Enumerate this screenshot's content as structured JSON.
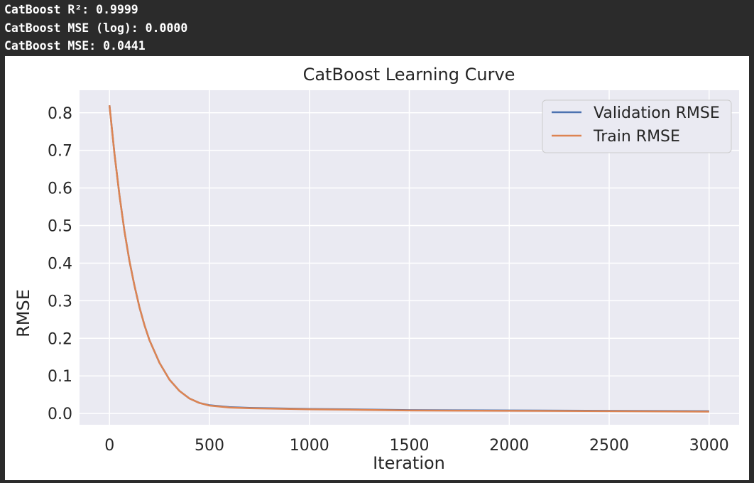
{
  "console": {
    "lines": [
      "CatBoost R²: 0.9999",
      "CatBoost MSE (log): 0.0000",
      "CatBoost MSE: 0.0441"
    ]
  },
  "colors": {
    "validation": "#4c72b0",
    "train": "#dd8452",
    "plot_bg": "#eaeaf2",
    "grid": "#ffffff"
  },
  "chart_data": {
    "type": "line",
    "title": "CatBoost Learning Curve",
    "xlabel": "Iteration",
    "ylabel": "RMSE",
    "xlim": [
      -150,
      3150
    ],
    "ylim": [
      -0.03,
      0.86
    ],
    "x_ticks": [
      0,
      500,
      1000,
      1500,
      2000,
      2500,
      3000
    ],
    "x_tick_labels": [
      "0",
      "500",
      "1000",
      "1500",
      "2000",
      "2500",
      "3000"
    ],
    "y_ticks": [
      0.0,
      0.1,
      0.2,
      0.3,
      0.4,
      0.5,
      0.6,
      0.7,
      0.8
    ],
    "y_tick_labels": [
      "0.0",
      "0.1",
      "0.2",
      "0.3",
      "0.4",
      "0.5",
      "0.6",
      "0.7",
      "0.8"
    ],
    "grid": true,
    "legend_position": "top-right",
    "series": [
      {
        "name": "Validation RMSE",
        "x": [
          0,
          25,
          50,
          75,
          100,
          125,
          150,
          175,
          200,
          250,
          300,
          350,
          400,
          450,
          500,
          600,
          700,
          800,
          1000,
          1200,
          1500,
          2000,
          2500,
          3000
        ],
        "y": [
          0.82,
          0.69,
          0.58,
          0.485,
          0.405,
          0.34,
          0.282,
          0.235,
          0.195,
          0.135,
          0.09,
          0.06,
          0.04,
          0.028,
          0.022,
          0.017,
          0.015,
          0.014,
          0.012,
          0.011,
          0.009,
          0.008,
          0.007,
          0.006
        ]
      },
      {
        "name": "Train RMSE",
        "x": [
          0,
          25,
          50,
          75,
          100,
          125,
          150,
          175,
          200,
          250,
          300,
          350,
          400,
          450,
          500,
          600,
          700,
          800,
          1000,
          1200,
          1500,
          2000,
          2500,
          3000
        ],
        "y": [
          0.82,
          0.69,
          0.58,
          0.485,
          0.405,
          0.34,
          0.282,
          0.235,
          0.195,
          0.135,
          0.09,
          0.06,
          0.04,
          0.028,
          0.021,
          0.016,
          0.014,
          0.013,
          0.011,
          0.01,
          0.008,
          0.007,
          0.006,
          0.005
        ]
      }
    ]
  }
}
